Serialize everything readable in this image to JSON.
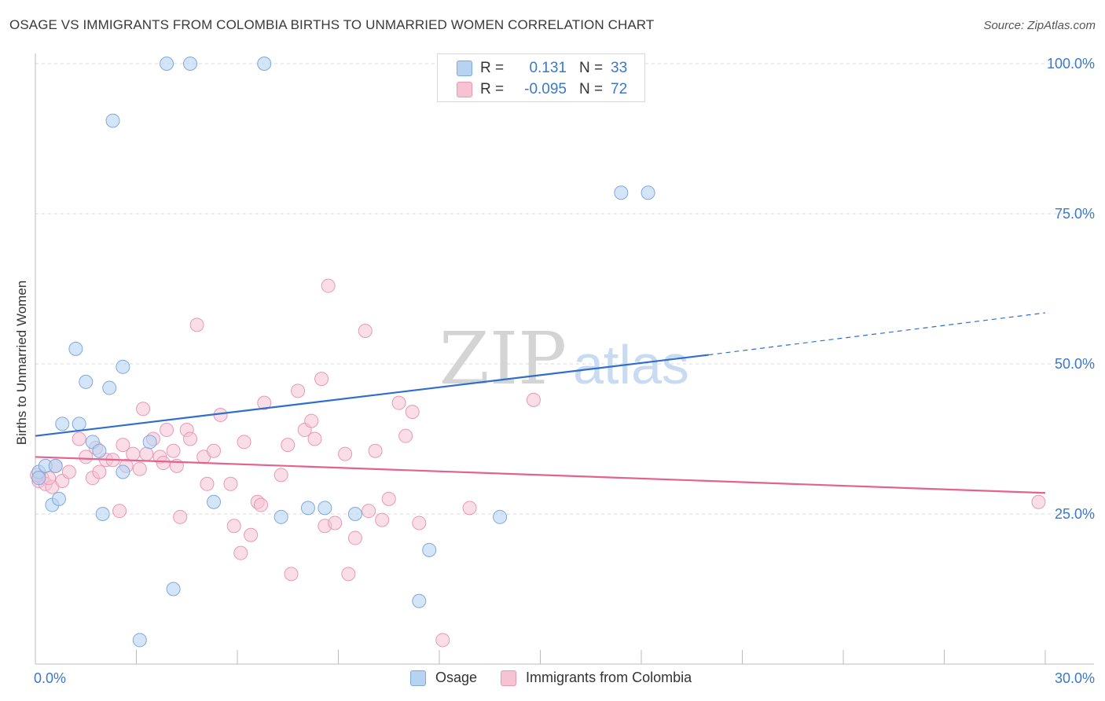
{
  "title": "OSAGE VS IMMIGRANTS FROM COLOMBIA BIRTHS TO UNMARRIED WOMEN CORRELATION CHART",
  "source": "Source: ZipAtlas.com",
  "watermark": {
    "zip": "ZIP",
    "atlas": "atlas"
  },
  "legend": {
    "rows": [
      {
        "r_label": "R =",
        "r_value": "0.131",
        "n_label": "N =",
        "n_value": "33"
      },
      {
        "r_label": "R =",
        "r_value": "-0.095",
        "n_label": "N =",
        "n_value": "72"
      }
    ]
  },
  "bottom_legend": {
    "series1": "Osage",
    "series2": "Immigrants from Colombia"
  },
  "colors": {
    "osage_fill": "#b8d3f2",
    "osage_stroke": "#7fa9dc",
    "osage_line": "#2f6fcb",
    "colombia_fill": "#f6c3d3",
    "colombia_stroke": "#ea98b4",
    "colombia_line": "#e4628e",
    "tick_label": "#3b78c8",
    "grid": "#d9d9d9"
  },
  "chart_data": {
    "type": "scatter",
    "title": "OSAGE VS IMMIGRANTS FROM COLOMBIA BIRTHS TO UNMARRIED WOMEN CORRELATION CHART",
    "xlabel": "",
    "ylabel": "Births to Unmarried Women",
    "xlim": [
      0,
      30
    ],
    "ylim": [
      0,
      100
    ],
    "x_tick_labels": [
      "0.0%",
      "30.0%"
    ],
    "y_ticks": [
      25,
      50,
      75,
      100
    ],
    "y_tick_labels": [
      "25.0%",
      "50.0%",
      "75.0%",
      "100.0%"
    ],
    "series": [
      {
        "name": "Osage",
        "r": 0.131,
        "n": 33,
        "points": [
          [
            0.1,
            32
          ],
          [
            0.1,
            31
          ],
          [
            0.3,
            33
          ],
          [
            0.5,
            26.5
          ],
          [
            0.6,
            33
          ],
          [
            0.7,
            27.5
          ],
          [
            0.8,
            40
          ],
          [
            1.2,
            52.5
          ],
          [
            1.3,
            40
          ],
          [
            1.5,
            47
          ],
          [
            1.7,
            37
          ],
          [
            1.9,
            35.5
          ],
          [
            2.0,
            25
          ],
          [
            2.2,
            46
          ],
          [
            2.3,
            90.5
          ],
          [
            2.6,
            49.5
          ],
          [
            2.6,
            32
          ],
          [
            3.4,
            37
          ],
          [
            3.9,
            100
          ],
          [
            4.1,
            12.5
          ],
          [
            4.6,
            100
          ],
          [
            5.3,
            27
          ],
          [
            6.8,
            100
          ],
          [
            7.3,
            24.5
          ],
          [
            8.1,
            26
          ],
          [
            8.6,
            26
          ],
          [
            9.5,
            25
          ],
          [
            11.4,
            10.5
          ],
          [
            11.7,
            19
          ],
          [
            13.8,
            24.5
          ],
          [
            17.4,
            78.5
          ],
          [
            18.2,
            78.5
          ],
          [
            3.1,
            4
          ]
        ],
        "trend": {
          "x0": 0,
          "y0": 38,
          "x1": 20,
          "y1": 51.5,
          "x_dashed_end": 30,
          "y_dashed_end": 58.5
        }
      },
      {
        "name": "Immigrants from Colombia",
        "r": -0.095,
        "n": 72,
        "points": [
          [
            0.1,
            30.5
          ],
          [
            0.2,
            31
          ],
          [
            0.3,
            30
          ],
          [
            0.5,
            29.5
          ],
          [
            0.6,
            33
          ],
          [
            0.8,
            30.5
          ],
          [
            1.0,
            32
          ],
          [
            1.3,
            37.5
          ],
          [
            1.5,
            34.5
          ],
          [
            1.7,
            31
          ],
          [
            1.8,
            36
          ],
          [
            1.9,
            32
          ],
          [
            2.1,
            34
          ],
          [
            2.3,
            34
          ],
          [
            2.5,
            25.5
          ],
          [
            2.6,
            36.5
          ],
          [
            2.7,
            33
          ],
          [
            2.9,
            35
          ],
          [
            3.1,
            32.5
          ],
          [
            3.2,
            42.5
          ],
          [
            3.3,
            35
          ],
          [
            3.5,
            37.5
          ],
          [
            3.7,
            34.5
          ],
          [
            3.8,
            33.5
          ],
          [
            3.9,
            39
          ],
          [
            4.1,
            35.5
          ],
          [
            4.2,
            33
          ],
          [
            4.3,
            24.5
          ],
          [
            4.5,
            39
          ],
          [
            4.6,
            37.5
          ],
          [
            4.8,
            56.5
          ],
          [
            5.0,
            34.5
          ],
          [
            5.1,
            30
          ],
          [
            5.3,
            35.5
          ],
          [
            5.5,
            41.5
          ],
          [
            5.8,
            30
          ],
          [
            5.9,
            23
          ],
          [
            6.1,
            18.5
          ],
          [
            6.2,
            37
          ],
          [
            6.4,
            21.5
          ],
          [
            6.6,
            27
          ],
          [
            6.7,
            26.5
          ],
          [
            6.8,
            43.5
          ],
          [
            7.3,
            31.5
          ],
          [
            7.5,
            36.5
          ],
          [
            7.6,
            15
          ],
          [
            7.8,
            45.5
          ],
          [
            8.0,
            39
          ],
          [
            8.2,
            40.5
          ],
          [
            8.3,
            37.5
          ],
          [
            8.5,
            47.5
          ],
          [
            8.6,
            23
          ],
          [
            8.7,
            63
          ],
          [
            8.9,
            23.5
          ],
          [
            9.2,
            35
          ],
          [
            9.3,
            15
          ],
          [
            9.5,
            21
          ],
          [
            9.8,
            55.5
          ],
          [
            9.9,
            25.5
          ],
          [
            10.1,
            35.5
          ],
          [
            10.3,
            24
          ],
          [
            10.5,
            27.5
          ],
          [
            10.8,
            43.5
          ],
          [
            11.0,
            38
          ],
          [
            11.2,
            42
          ],
          [
            11.4,
            23.5
          ],
          [
            12.1,
            4
          ],
          [
            12.9,
            26
          ],
          [
            14.8,
            44
          ],
          [
            29.8,
            27
          ],
          [
            0.05,
            31.5
          ],
          [
            0.4,
            31
          ]
        ],
        "trend": {
          "x0": 0,
          "y0": 34.5,
          "x1": 30,
          "y1": 28.5
        }
      }
    ]
  }
}
